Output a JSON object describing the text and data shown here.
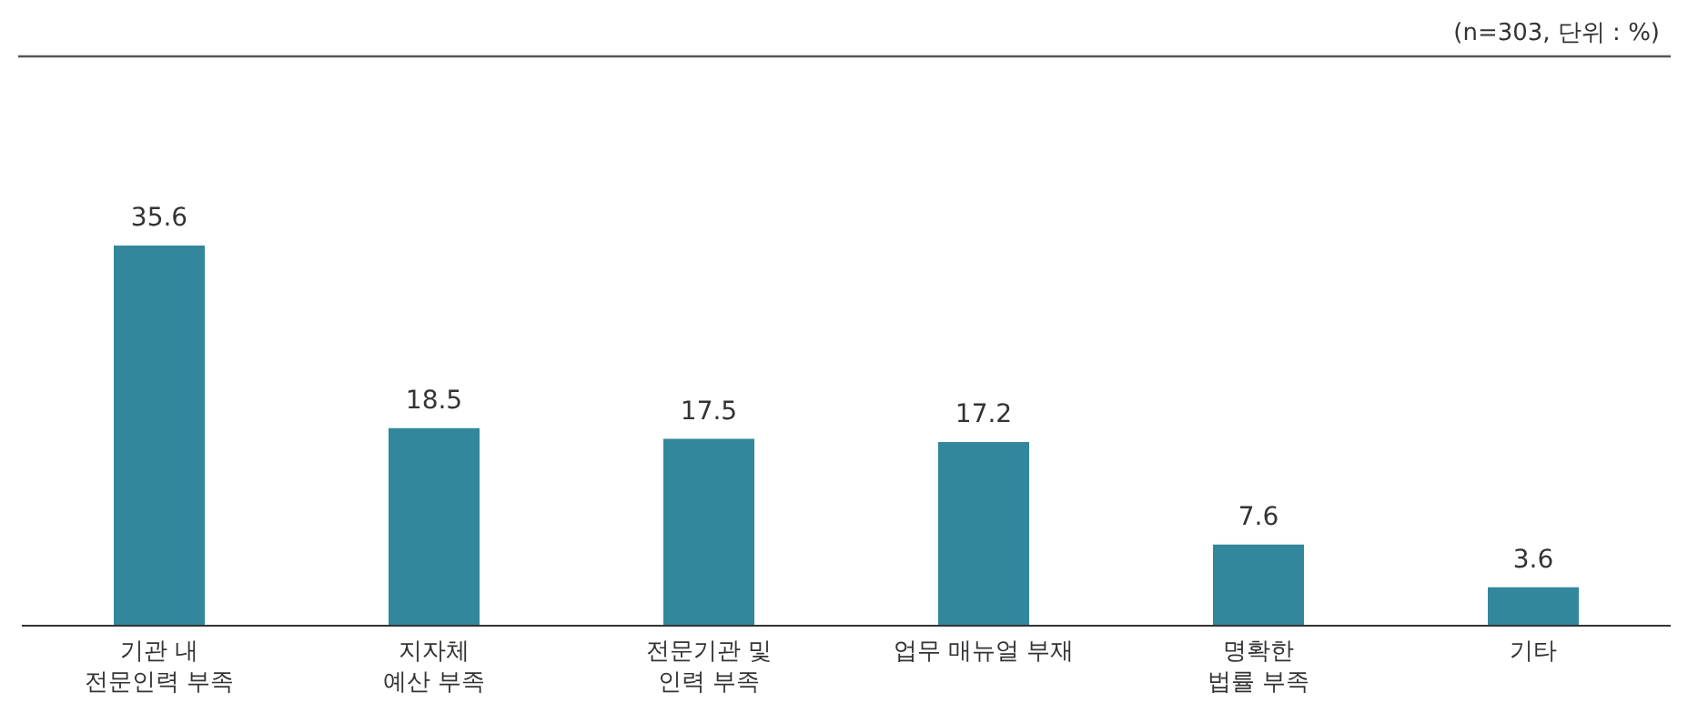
{
  "chart_data": {
    "type": "bar",
    "categories": [
      "기관 내\n전문인력 부족",
      "지자체\n예산 부족",
      "전문기관 및\n인력 부족",
      "업무 매뉴얼 부재",
      "명확한\n법률 부족",
      "기타"
    ],
    "values": [
      35.6,
      18.5,
      17.5,
      17.2,
      7.6,
      3.6
    ],
    "color": "#32879c",
    "data_labels": true,
    "relative": false,
    "annotations": [
      "(n=303, 단위 : %)"
    ]
  }
}
